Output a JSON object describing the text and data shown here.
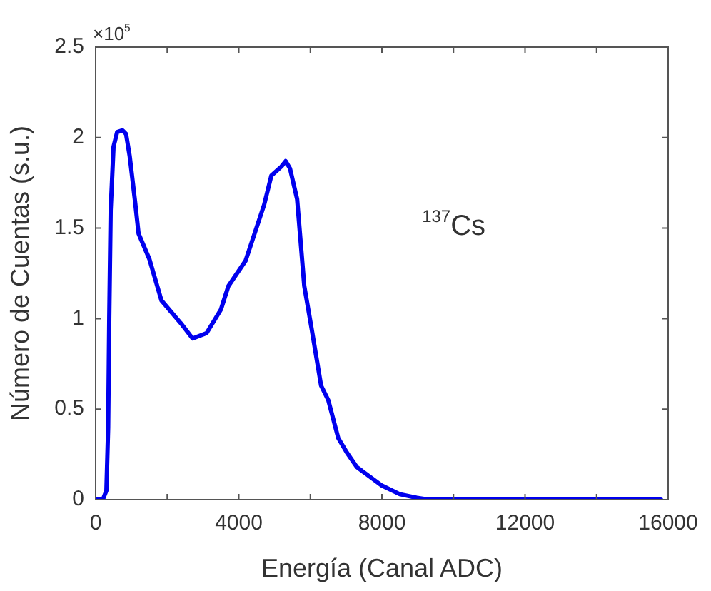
{
  "chart_data": {
    "type": "line",
    "xlabel": "Energía (Canal ADC)",
    "ylabel": "Número de Cuentas (s.u.)",
    "annotations": [
      "×10$^{5}$",
      "$^{137}$Cs"
    ],
    "xlim": [
      0,
      16000
    ],
    "xticks": [
      0,
      {
        "value": 2000,
        "label": null
      },
      4000,
      {
        "value": 6000,
        "label": null
      },
      8000,
      {
        "value": 10000,
        "label": null
      },
      12000,
      {
        "value": 14000,
        "label": null
      },
      16000
    ],
    "ylim": [
      0,
      2.5
    ],
    "yticks": [
      0,
      0.5,
      1,
      1.5,
      2,
      2.5
    ],
    "grid": false,
    "legend": false,
    "marker": "none",
    "line_style": "solid",
    "series": [
      {
        "color": "#0000ee",
        "x": [
          0,
          200,
          300,
          350,
          380,
          420,
          500,
          600,
          750,
          850,
          950,
          1100,
          1200,
          1500,
          1840,
          2400,
          2710,
          3100,
          3500,
          3710,
          4190,
          4710,
          4910,
          5190,
          5310,
          5430,
          5630,
          5830,
          6030,
          6300,
          6500,
          6780,
          7020,
          7300,
          7980,
          8500,
          8980,
          9300,
          15800
        ],
        "values": [
          0,
          0,
          0.05,
          0.4,
          1.0,
          1.6,
          1.95,
          2.03,
          2.04,
          2.02,
          1.9,
          1.65,
          1.47,
          1.33,
          1.1,
          0.97,
          0.89,
          0.92,
          1.05,
          1.18,
          1.32,
          1.63,
          1.79,
          1.84,
          1.87,
          1.83,
          1.66,
          1.18,
          0.95,
          0.63,
          0.55,
          0.34,
          0.26,
          0.18,
          0.08,
          0.03,
          0.01,
          0,
          0
        ]
      }
    ]
  }
}
